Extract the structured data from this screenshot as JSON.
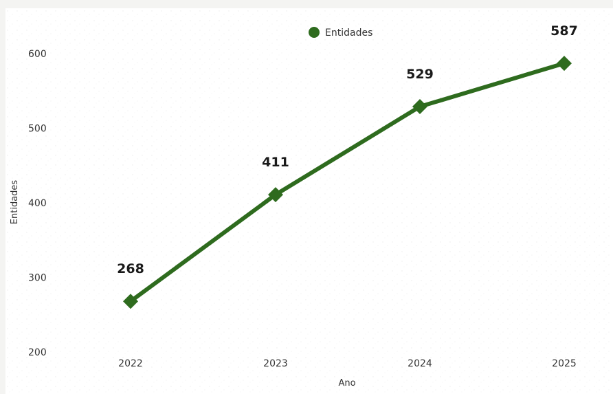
{
  "chart_data": {
    "type": "line",
    "title": "",
    "xlabel": "Ano",
    "ylabel": "Entidades",
    "categories": [
      "2022",
      "2023",
      "2024",
      "2025"
    ],
    "series": [
      {
        "name": "Entidades",
        "values": [
          268,
          411,
          529,
          587
        ],
        "color": "#2e6b1e"
      }
    ],
    "ylim": [
      200,
      600
    ],
    "yticks": [
      200,
      300,
      400,
      500,
      600
    ],
    "grid": false,
    "legend": "top-center",
    "marker": "diamond",
    "data_labels": [
      "268",
      "411",
      "529",
      "587"
    ]
  }
}
